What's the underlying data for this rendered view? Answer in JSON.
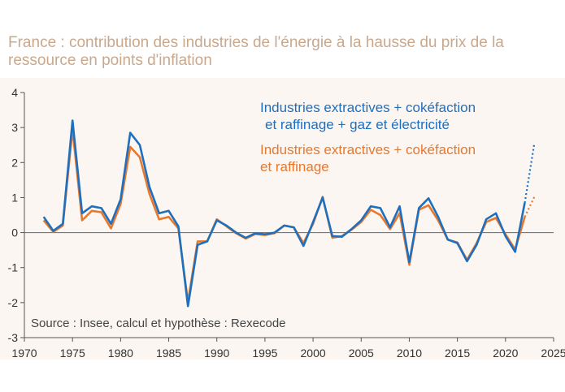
{
  "title": "France : contribution des industries de l'énergie à la hausse du prix de la ressource en points d'inflation",
  "source": "Source : Insee, calcul et hypothèse : Rexecode",
  "chart_data": {
    "type": "line",
    "title": "France : contribution des industries de l'énergie à la hausse du prix de la ressource en points d'inflation",
    "xlabel": "",
    "ylabel": "",
    "xlim": [
      1970,
      2025
    ],
    "ylim": [
      -3,
      4
    ],
    "xticks": [
      1970,
      1975,
      1980,
      1985,
      1990,
      1995,
      2000,
      2005,
      2010,
      2015,
      2020,
      2025
    ],
    "yticks": [
      -3,
      -2,
      -1,
      0,
      1,
      2,
      3,
      4
    ],
    "grid": false,
    "legend_position": "top-right",
    "x": [
      1972,
      1973,
      1974,
      1975,
      1976,
      1977,
      1978,
      1979,
      1980,
      1981,
      1982,
      1983,
      1984,
      1985,
      1986,
      1987,
      1988,
      1989,
      1990,
      1991,
      1992,
      1993,
      1994,
      1995,
      1996,
      1997,
      1998,
      1999,
      2000,
      2001,
      2002,
      2003,
      2004,
      2005,
      2006,
      2007,
      2008,
      2009,
      2010,
      2011,
      2012,
      2013,
      2014,
      2015,
      2016,
      2017,
      2018,
      2019,
      2020,
      2021,
      2022
    ],
    "series": [
      {
        "name": "Industries extractives + cokéfaction et raffinage + gaz et électricité",
        "color": "#1f6fbf",
        "values": [
          0.45,
          0.05,
          0.25,
          3.2,
          0.55,
          0.75,
          0.7,
          0.25,
          0.95,
          2.85,
          2.5,
          1.3,
          0.55,
          0.62,
          0.18,
          -2.1,
          -0.35,
          -0.25,
          0.35,
          0.2,
          0.0,
          -0.15,
          -0.02,
          -0.05,
          0.0,
          0.2,
          0.15,
          -0.38,
          0.3,
          1.0,
          -0.1,
          -0.12,
          0.1,
          0.35,
          0.75,
          0.7,
          0.15,
          0.75,
          -0.85,
          0.7,
          0.98,
          0.45,
          -0.2,
          -0.3,
          -0.82,
          -0.35,
          0.38,
          0.55,
          -0.1,
          -0.55,
          0.85
        ],
        "projection": {
          "x": [
            2022,
            2023
          ],
          "values": [
            0.85,
            2.55
          ]
        }
      },
      {
        "name": "Industries extractives + cokéfaction et raffinage",
        "color": "#e8782c",
        "values": [
          0.35,
          0.02,
          0.2,
          2.95,
          0.35,
          0.62,
          0.58,
          0.12,
          0.82,
          2.45,
          2.15,
          1.1,
          0.38,
          0.45,
          0.12,
          -1.98,
          -0.25,
          -0.25,
          0.38,
          0.18,
          -0.02,
          -0.17,
          -0.04,
          -0.07,
          -0.02,
          0.2,
          0.15,
          -0.3,
          0.25,
          1.02,
          -0.15,
          -0.1,
          0.08,
          0.3,
          0.65,
          0.5,
          0.1,
          0.55,
          -0.92,
          0.65,
          0.78,
          0.35,
          -0.2,
          -0.28,
          -0.78,
          -0.3,
          0.3,
          0.42,
          -0.05,
          -0.48,
          0.45
        ],
        "projection": {
          "x": [
            2022,
            2023
          ],
          "values": [
            0.45,
            1.02
          ]
        }
      }
    ]
  }
}
